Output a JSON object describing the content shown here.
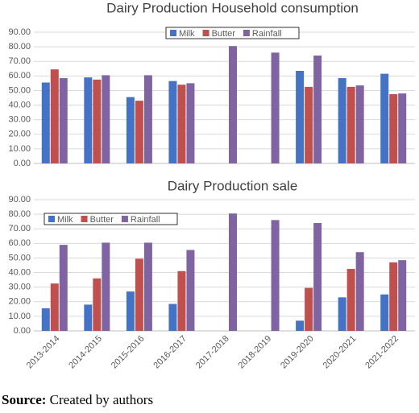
{
  "chart_data": [
    {
      "type": "bar",
      "title": "Dairy Production Household consumption",
      "categories": [
        null,
        null,
        null,
        null,
        null,
        null,
        null,
        null,
        null
      ],
      "series": [
        {
          "name": "Milk",
          "color": "#4472c4",
          "values": [
            55.5,
            59,
            45.5,
            56.5,
            null,
            null,
            63.5,
            58.5,
            61.5
          ]
        },
        {
          "name": "Butter",
          "color": "#c0504d",
          "values": [
            64.5,
            57.5,
            43,
            54,
            null,
            null,
            52.5,
            52.5,
            47.5
          ]
        },
        {
          "name": "Rainfall",
          "color": "#8064a2",
          "values": [
            58.5,
            60.5,
            60.5,
            55,
            80.5,
            76,
            74,
            53.5,
            48
          ]
        }
      ],
      "ylim": [
        0,
        90
      ],
      "yticks": [
        {
          "value": 0,
          "label": "0.00"
        },
        {
          "value": 10,
          "label": "10.00"
        },
        {
          "value": 20,
          "label": "20.00"
        },
        {
          "value": 30,
          "label": "30.00"
        },
        {
          "value": 40,
          "label": "40.00"
        },
        {
          "value": 50,
          "label": "50.00"
        },
        {
          "value": 60,
          "label": "60.00"
        },
        {
          "value": 70,
          "label": "70.00"
        },
        {
          "value": 80,
          "label": "80.00"
        },
        {
          "value": 90,
          "label": "90.00"
        }
      ],
      "grid": true,
      "legend": "top-center"
    },
    {
      "type": "bar",
      "title": "Dairy Production sale",
      "categories": [
        "2013-2014",
        "2014-2015",
        "2015-2016",
        "2016-2017",
        "2017-2018",
        "2018-2019",
        "2019-2020",
        "2020-2021",
        "2021-2022"
      ],
      "series": [
        {
          "name": "Milk",
          "color": "#4472c4",
          "values": [
            15.5,
            18,
            27,
            18.5,
            null,
            null,
            7,
            23,
            25
          ]
        },
        {
          "name": "Butter",
          "color": "#c0504d",
          "values": [
            32.5,
            36,
            49.5,
            41,
            null,
            null,
            29.5,
            42.5,
            47
          ]
        },
        {
          "name": "Rainfall",
          "color": "#8064a2",
          "values": [
            59,
            60.5,
            60.5,
            55.5,
            80.5,
            76,
            74,
            54,
            48.5
          ]
        }
      ],
      "ylim": [
        0,
        90
      ],
      "yticks": [
        {
          "value": 0,
          "label": "0.00"
        },
        {
          "value": 10,
          "label": "10.00"
        },
        {
          "value": 20,
          "label": "20.00"
        },
        {
          "value": 30,
          "label": "30.00"
        },
        {
          "value": 40,
          "label": "40.00"
        },
        {
          "value": 50,
          "label": "50.00"
        },
        {
          "value": 60,
          "label": "60.00"
        },
        {
          "value": 70,
          "label": "70.00"
        },
        {
          "value": 80,
          "label": "80.00"
        },
        {
          "value": 90,
          "label": "90.00"
        }
      ],
      "grid": true,
      "legend": "top-left"
    }
  ],
  "source": {
    "label": "Source:",
    "text": "Created by authors"
  }
}
